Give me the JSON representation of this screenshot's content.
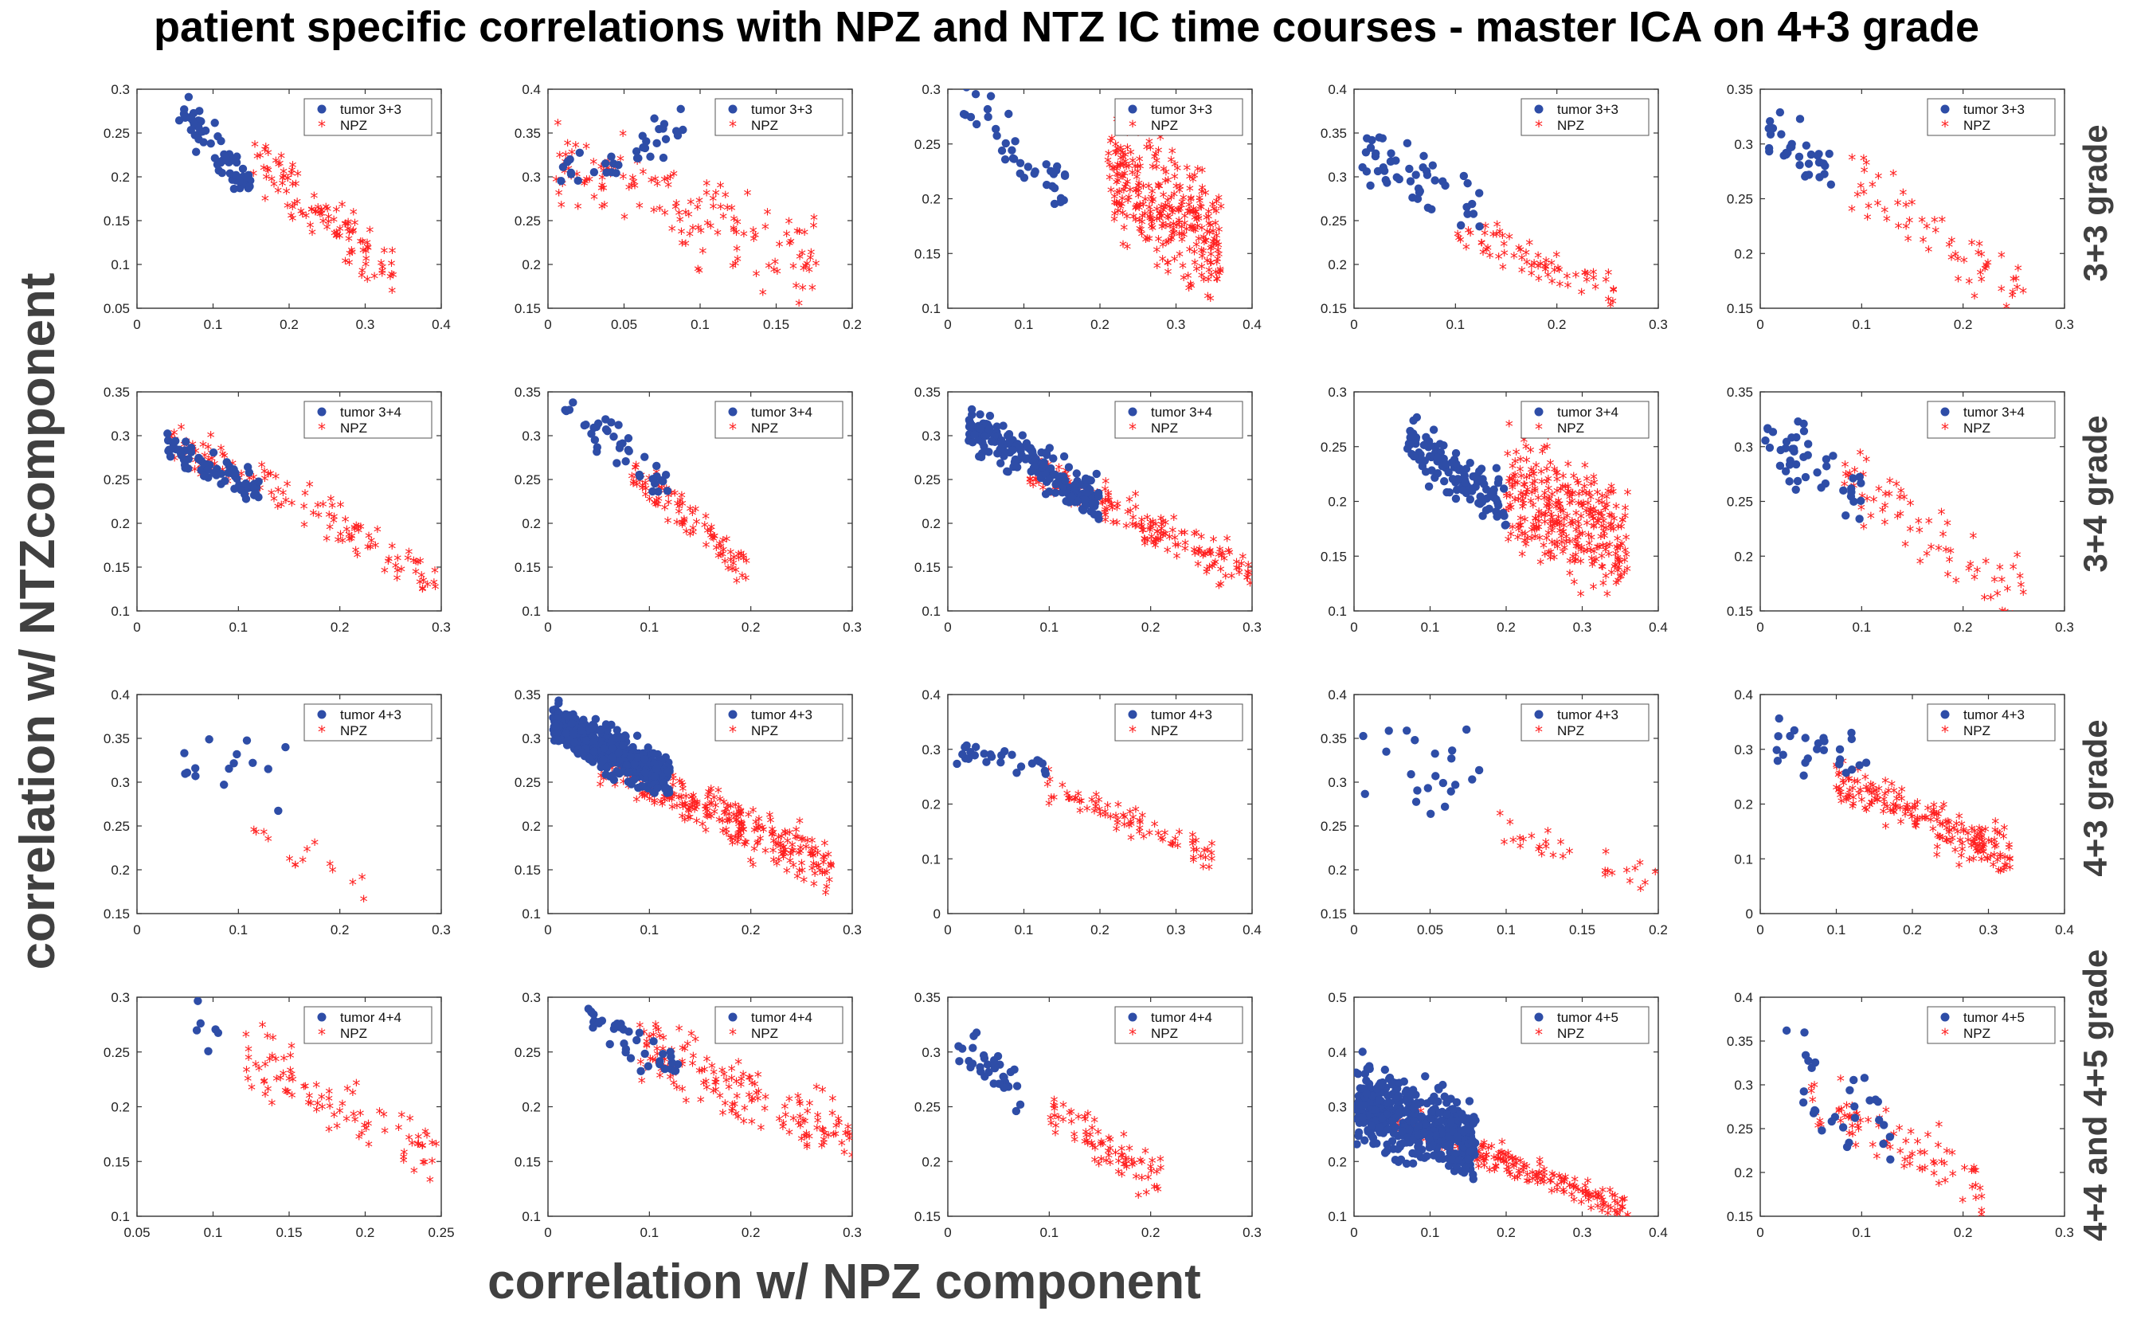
{
  "figure": {
    "title": "patient specific correlations with NPZ and NTZ IC time courses - master ICA on 4+3 grade",
    "xlabel": "correlation w/ NPZ component",
    "ylabel": "correlation w/ NTZcomponent",
    "row_labels": [
      "3+3 grade",
      "3+4 grade",
      "4+3 grade",
      "4+4 and 4+5 grade"
    ],
    "colors": {
      "tumor": "#2E4DA7",
      "npz": "#FF1F1F",
      "text": "#404040"
    }
  },
  "chart_data": [
    {
      "type": "scatter",
      "xlim": [
        0,
        0.4
      ],
      "ylim": [
        0.05,
        0.3
      ],
      "xticks": [
        "0",
        "0.1",
        "0.2",
        "0.3",
        "0.4"
      ],
      "yticks": [
        "0.05",
        "0.1",
        "0.15",
        "0.2",
        "0.25",
        "0.3"
      ],
      "legend": [
        "tumor 3+3",
        "NPZ"
      ],
      "tumor": {
        "n": 60,
        "x": [
          0.055,
          0.15
        ],
        "yc": [
          0.28,
          0.185
        ],
        "spread": 0.012
      },
      "npz": {
        "n": 110,
        "x": [
          0.15,
          0.34
        ],
        "yc": [
          0.22,
          0.085
        ],
        "spread": 0.015
      }
    },
    {
      "type": "scatter",
      "xlim": [
        0,
        0.2
      ],
      "ylim": [
        0.15,
        0.4
      ],
      "xticks": [
        "0",
        "0.05",
        "0.1",
        "0.15",
        "0.2"
      ],
      "yticks": [
        "0.15",
        "0.2",
        "0.25",
        "0.3",
        "0.35",
        "0.4"
      ],
      "legend": [
        "tumor 3+3",
        "NPZ"
      ],
      "tumor": {
        "n": 35,
        "x": [
          0.005,
          0.09
        ],
        "yc": [
          0.31,
          0.35
        ],
        "spread": 0.015
      },
      "npz": {
        "n": 140,
        "x": [
          0.005,
          0.18
        ],
        "yc": [
          0.32,
          0.2
        ],
        "spread": 0.025
      }
    },
    {
      "type": "scatter",
      "xlim": [
        0,
        0.4
      ],
      "ylim": [
        0.1,
        0.3
      ],
      "xticks": [
        "0",
        "0.1",
        "0.2",
        "0.3",
        "0.4"
      ],
      "yticks": [
        "0.1",
        "0.15",
        "0.2",
        "0.25",
        "0.3"
      ],
      "legend": [
        "tumor 3+3",
        "NPZ"
      ],
      "tumor": {
        "n": 40,
        "x": [
          0.02,
          0.16
        ],
        "yc": [
          0.28,
          0.205
        ],
        "spread": 0.015
      },
      "npz": {
        "n": 300,
        "x": [
          0.21,
          0.36
        ],
        "yc": [
          0.22,
          0.155
        ],
        "spread": 0.025
      }
    },
    {
      "type": "scatter",
      "xlim": [
        0,
        0.3
      ],
      "ylim": [
        0.15,
        0.4
      ],
      "xticks": [
        "0",
        "0.1",
        "0.2",
        "0.3"
      ],
      "yticks": [
        "0.15",
        "0.2",
        "0.25",
        "0.3",
        "0.35",
        "0.4"
      ],
      "legend": [
        "tumor 3+3",
        "NPZ"
      ],
      "tumor": {
        "n": 50,
        "x": [
          0.005,
          0.13
        ],
        "yc": [
          0.33,
          0.26
        ],
        "spread": 0.018
      },
      "npz": {
        "n": 70,
        "x": [
          0.1,
          0.26
        ],
        "yc": [
          0.24,
          0.16
        ],
        "spread": 0.012
      }
    },
    {
      "type": "scatter",
      "xlim": [
        0,
        0.3
      ],
      "ylim": [
        0.15,
        0.35
      ],
      "xticks": [
        "0",
        "0.1",
        "0.2",
        "0.3"
      ],
      "yticks": [
        "0.15",
        "0.2",
        "0.25",
        "0.3",
        "0.35"
      ],
      "legend": [
        "tumor 3+3",
        "NPZ"
      ],
      "tumor": {
        "n": 35,
        "x": [
          0.005,
          0.07
        ],
        "yc": [
          0.31,
          0.275
        ],
        "spread": 0.012
      },
      "npz": {
        "n": 60,
        "x": [
          0.09,
          0.26
        ],
        "yc": [
          0.265,
          0.16
        ],
        "spread": 0.015
      }
    },
    {
      "type": "scatter",
      "xlim": [
        0,
        0.3
      ],
      "ylim": [
        0.1,
        0.35
      ],
      "xticks": [
        "0",
        "0.1",
        "0.2",
        "0.3"
      ],
      "yticks": [
        "0.1",
        "0.15",
        "0.2",
        "0.25",
        "0.3",
        "0.35"
      ],
      "legend": [
        "tumor 3+4",
        "NPZ"
      ],
      "tumor": {
        "n": 70,
        "x": [
          0.03,
          0.12
        ],
        "yc": [
          0.29,
          0.24
        ],
        "spread": 0.01
      },
      "npz": {
        "n": 130,
        "x": [
          0.03,
          0.3
        ],
        "yc": [
          0.3,
          0.13
        ],
        "spread": 0.012
      }
    },
    {
      "type": "scatter",
      "xlim": [
        0,
        0.3
      ],
      "ylim": [
        0.1,
        0.35
      ],
      "xticks": [
        "0",
        "0.1",
        "0.2",
        "0.3"
      ],
      "yticks": [
        "0.1",
        "0.15",
        "0.2",
        "0.25",
        "0.3",
        "0.35"
      ],
      "legend": [
        "tumor 3+4",
        "NPZ"
      ],
      "tumor": {
        "n": 40,
        "x": [
          0.015,
          0.12
        ],
        "yc": [
          0.335,
          0.24
        ],
        "spread": 0.012
      },
      "npz": {
        "n": 90,
        "x": [
          0.08,
          0.2
        ],
        "yc": [
          0.255,
          0.145
        ],
        "spread": 0.012
      }
    },
    {
      "type": "scatter",
      "xlim": [
        0,
        0.3
      ],
      "ylim": [
        0.1,
        0.35
      ],
      "xticks": [
        "0",
        "0.1",
        "0.2",
        "0.3"
      ],
      "yticks": [
        "0.1",
        "0.15",
        "0.2",
        "0.25",
        "0.3",
        "0.35"
      ],
      "legend": [
        "tumor 3+4",
        "NPZ"
      ],
      "tumor": {
        "n": 200,
        "x": [
          0.02,
          0.15
        ],
        "yc": [
          0.31,
          0.225
        ],
        "spread": 0.012
      },
      "npz": {
        "n": 180,
        "x": [
          0.08,
          0.3
        ],
        "yc": [
          0.26,
          0.14
        ],
        "spread": 0.012
      }
    },
    {
      "type": "scatter",
      "xlim": [
        0,
        0.4
      ],
      "ylim": [
        0.1,
        0.3
      ],
      "xticks": [
        "0",
        "0.1",
        "0.2",
        "0.3",
        "0.4"
      ],
      "yticks": [
        "0.1",
        "0.15",
        "0.2",
        "0.25",
        "0.3"
      ],
      "legend": [
        "tumor 3+4",
        "NPZ"
      ],
      "tumor": {
        "n": 120,
        "x": [
          0.07,
          0.2
        ],
        "yc": [
          0.255,
          0.195
        ],
        "spread": 0.012
      },
      "npz": {
        "n": 320,
        "x": [
          0.2,
          0.36
        ],
        "yc": [
          0.21,
          0.16
        ],
        "spread": 0.025
      }
    },
    {
      "type": "scatter",
      "xlim": [
        0,
        0.3
      ],
      "ylim": [
        0.15,
        0.35
      ],
      "xticks": [
        "0",
        "0.1",
        "0.2",
        "0.3"
      ],
      "yticks": [
        "0.15",
        "0.2",
        "0.25",
        "0.3",
        "0.35"
      ],
      "legend": [
        "tumor 3+4",
        "NPZ"
      ],
      "tumor": {
        "n": 45,
        "x": [
          0.005,
          0.1
        ],
        "yc": [
          0.31,
          0.255
        ],
        "spread": 0.015
      },
      "npz": {
        "n": 70,
        "x": [
          0.08,
          0.26
        ],
        "yc": [
          0.275,
          0.16
        ],
        "spread": 0.015
      }
    },
    {
      "type": "scatter",
      "xlim": [
        0,
        0.3
      ],
      "ylim": [
        0.15,
        0.4
      ],
      "xticks": [
        "0",
        "0.1",
        "0.2",
        "0.3"
      ],
      "yticks": [
        "0.15",
        "0.2",
        "0.25",
        "0.3",
        "0.35",
        "0.4"
      ],
      "legend": [
        "tumor 4+3",
        "NPZ"
      ],
      "tumor": {
        "n": 15,
        "x": [
          0.045,
          0.15
        ],
        "yc": [
          0.31,
          0.31
        ],
        "spread": 0.025
      },
      "npz": {
        "n": 15,
        "x": [
          0.1,
          0.24
        ],
        "yc": [
          0.255,
          0.165
        ],
        "spread": 0.012
      }
    },
    {
      "type": "scatter",
      "xlim": [
        0,
        0.3
      ],
      "ylim": [
        0.1,
        0.35
      ],
      "xticks": [
        "0",
        "0.1",
        "0.2",
        "0.3"
      ],
      "yticks": [
        "0.1",
        "0.15",
        "0.2",
        "0.25",
        "0.3",
        "0.35"
      ],
      "legend": [
        "tumor 4+3",
        "NPZ"
      ],
      "tumor": {
        "n": 500,
        "x": [
          0.005,
          0.12
        ],
        "yc": [
          0.315,
          0.255
        ],
        "spread": 0.012
      },
      "npz": {
        "n": 300,
        "x": [
          0.05,
          0.28
        ],
        "yc": [
          0.275,
          0.15
        ],
        "spread": 0.015
      }
    },
    {
      "type": "scatter",
      "xlim": [
        0,
        0.4
      ],
      "ylim": [
        0,
        0.4
      ],
      "xticks": [
        "0",
        "0.1",
        "0.2",
        "0.3",
        "0.4"
      ],
      "yticks": [
        "0",
        "0.1",
        "0.2",
        "0.3",
        "0.4"
      ],
      "legend": [
        "tumor 4+3",
        "NPZ"
      ],
      "tumor": {
        "n": 25,
        "x": [
          0.01,
          0.13
        ],
        "yc": [
          0.295,
          0.265
        ],
        "spread": 0.012
      },
      "npz": {
        "n": 80,
        "x": [
          0.13,
          0.35
        ],
        "yc": [
          0.23,
          0.1
        ],
        "spread": 0.012
      }
    },
    {
      "type": "scatter",
      "xlim": [
        0,
        0.2
      ],
      "ylim": [
        0.15,
        0.4
      ],
      "xticks": [
        "0",
        "0.05",
        "0.1",
        "0.15",
        "0.2"
      ],
      "yticks": [
        "0.15",
        "0.2",
        "0.25",
        "0.3",
        "0.35",
        "0.4"
      ],
      "legend": [
        "tumor 4+3",
        "NPZ"
      ],
      "tumor": {
        "n": 22,
        "x": [
          0.005,
          0.09
        ],
        "yc": [
          0.32,
          0.3
        ],
        "spread": 0.025
      },
      "npz": {
        "n": 30,
        "x": [
          0.09,
          0.2
        ],
        "yc": [
          0.25,
          0.18
        ],
        "spread": 0.01
      }
    },
    {
      "type": "scatter",
      "xlim": [
        0,
        0.4
      ],
      "ylim": [
        0,
        0.4
      ],
      "xticks": [
        "0",
        "0.1",
        "0.2",
        "0.3",
        "0.4"
      ],
      "yticks": [
        "0",
        "0.1",
        "0.2",
        "0.3",
        "0.4"
      ],
      "legend": [
        "tumor 4+3",
        "NPZ"
      ],
      "tumor": {
        "n": 25,
        "x": [
          0.02,
          0.14
        ],
        "yc": [
          0.31,
          0.28
        ],
        "spread": 0.025
      },
      "npz": {
        "n": 200,
        "x": [
          0.1,
          0.33
        ],
        "yc": [
          0.24,
          0.1
        ],
        "spread": 0.02
      }
    },
    {
      "type": "scatter",
      "xlim": [
        0.05,
        0.25
      ],
      "ylim": [
        0.1,
        0.3
      ],
      "xticks": [
        "0.05",
        "0.1",
        "0.15",
        "0.2",
        "0.25"
      ],
      "yticks": [
        "0.1",
        "0.15",
        "0.2",
        "0.25",
        "0.3"
      ],
      "legend": [
        "tumor 4+4",
        "NPZ"
      ],
      "tumor": {
        "n": 6,
        "x": [
          0.088,
          0.105
        ],
        "yc": [
          0.285,
          0.255
        ],
        "spread": 0.01
      },
      "npz": {
        "n": 90,
        "x": [
          0.12,
          0.25
        ],
        "yc": [
          0.245,
          0.15
        ],
        "spread": 0.015
      }
    },
    {
      "type": "scatter",
      "xlim": [
        0,
        0.3
      ],
      "ylim": [
        0.1,
        0.3
      ],
      "xticks": [
        "0",
        "0.1",
        "0.2",
        "0.3"
      ],
      "yticks": [
        "0.1",
        "0.15",
        "0.2",
        "0.25",
        "0.3"
      ],
      "legend": [
        "tumor 4+4",
        "NPZ"
      ],
      "tumor": {
        "n": 40,
        "x": [
          0.03,
          0.13
        ],
        "yc": [
          0.285,
          0.24
        ],
        "spread": 0.01
      },
      "npz": {
        "n": 150,
        "x": [
          0.09,
          0.3
        ],
        "yc": [
          0.255,
          0.165
        ],
        "spread": 0.015
      }
    },
    {
      "type": "scatter",
      "xlim": [
        0,
        0.3
      ],
      "ylim": [
        0.15,
        0.35
      ],
      "xticks": [
        "0",
        "0.1",
        "0.2",
        "0.3"
      ],
      "yticks": [
        "0.15",
        "0.2",
        "0.25",
        "0.3",
        "0.35"
      ],
      "legend": [
        "tumor 4+4",
        "NPZ"
      ],
      "tumor": {
        "n": 35,
        "x": [
          0.01,
          0.075
        ],
        "yc": [
          0.305,
          0.265
        ],
        "spread": 0.012
      },
      "npz": {
        "n": 80,
        "x": [
          0.1,
          0.21
        ],
        "yc": [
          0.245,
          0.18
        ],
        "spread": 0.012
      }
    },
    {
      "type": "scatter",
      "xlim": [
        0,
        0.4
      ],
      "ylim": [
        0.1,
        0.5
      ],
      "xticks": [
        "0",
        "0.1",
        "0.2",
        "0.3",
        "0.4"
      ],
      "yticks": [
        "0.1",
        "0.2",
        "0.3",
        "0.4",
        "0.5"
      ],
      "legend": [
        "tumor 4+5",
        "NPZ"
      ],
      "tumor": {
        "n": 450,
        "x": [
          0.002,
          0.16
        ],
        "yc": [
          0.31,
          0.24
        ],
        "spread": 0.035
      },
      "npz": {
        "n": 220,
        "x": [
          0.04,
          0.36
        ],
        "yc": [
          0.28,
          0.11
        ],
        "spread": 0.012
      }
    },
    {
      "type": "scatter",
      "xlim": [
        0,
        0.3
      ],
      "ylim": [
        0.15,
        0.4
      ],
      "xticks": [
        "0",
        "0.1",
        "0.2",
        "0.3"
      ],
      "yticks": [
        "0.15",
        "0.2",
        "0.25",
        "0.3",
        "0.35",
        "0.4"
      ],
      "legend": [
        "tumor 4+5",
        "NPZ"
      ],
      "tumor": {
        "n": 30,
        "x": [
          0.02,
          0.13
        ],
        "yc": [
          0.32,
          0.23
        ],
        "spread": 0.03
      },
      "npz": {
        "n": 80,
        "x": [
          0.05,
          0.22
        ],
        "yc": [
          0.275,
          0.18
        ],
        "spread": 0.018
      }
    }
  ]
}
